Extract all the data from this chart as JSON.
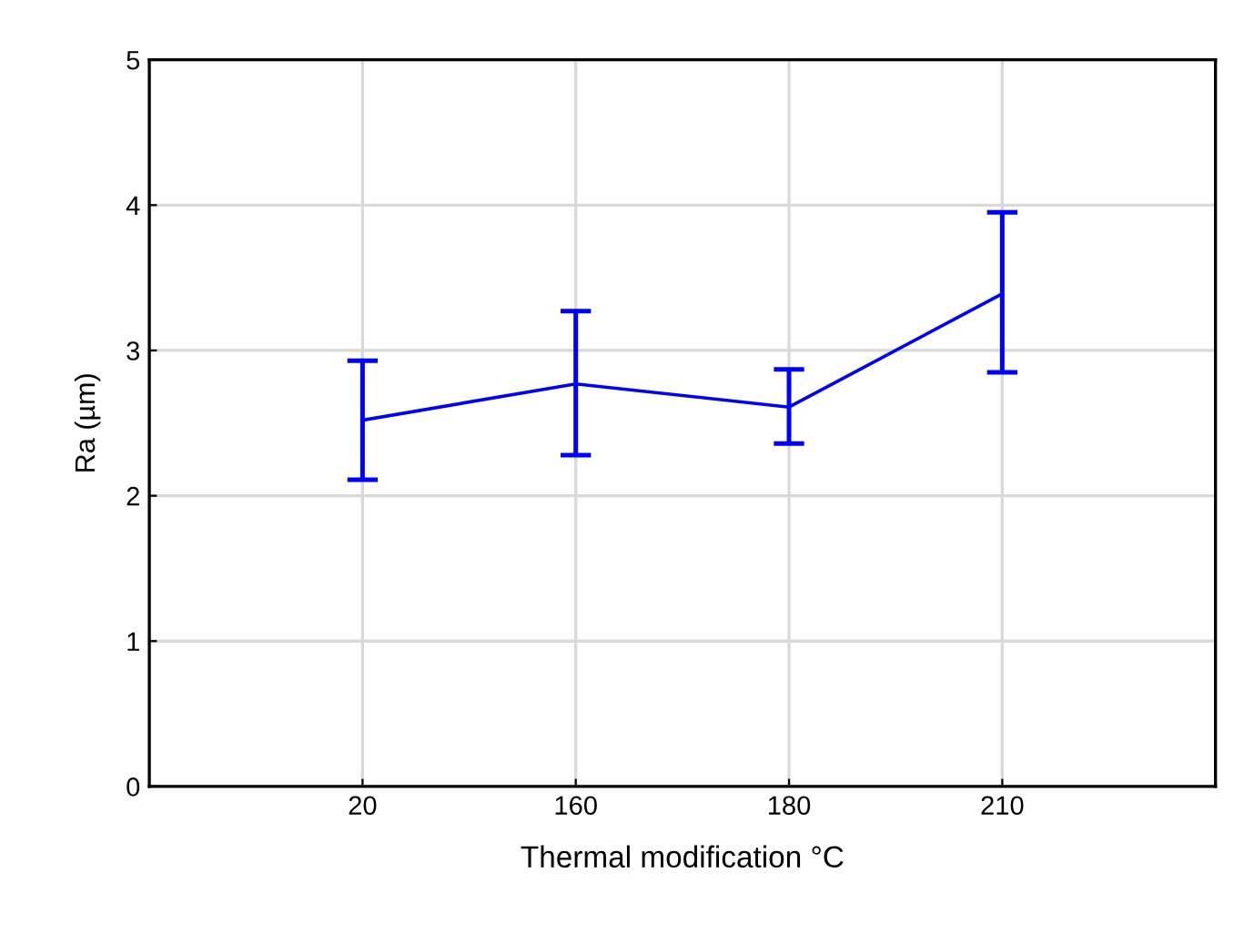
{
  "chart_data": {
    "type": "line",
    "xlabel": "Thermal modification °C",
    "ylabel": "Ra (µm)",
    "categories": [
      "20",
      "160",
      "180",
      "210"
    ],
    "series": [
      {
        "color": "#0000ff",
        "values": [
          2.52,
          2.77,
          2.61,
          3.39
        ],
        "errors": [
          [
            2.11,
            2.93
          ],
          [
            2.28,
            3.27
          ],
          [
            2.36,
            2.87
          ],
          [
            2.85,
            3.95
          ]
        ]
      }
    ],
    "ylim": [
      0,
      5
    ],
    "yticks": [
      0,
      1,
      2,
      3,
      4,
      5
    ],
    "grid": true,
    "marker": "none",
    "line_style": "solid"
  }
}
